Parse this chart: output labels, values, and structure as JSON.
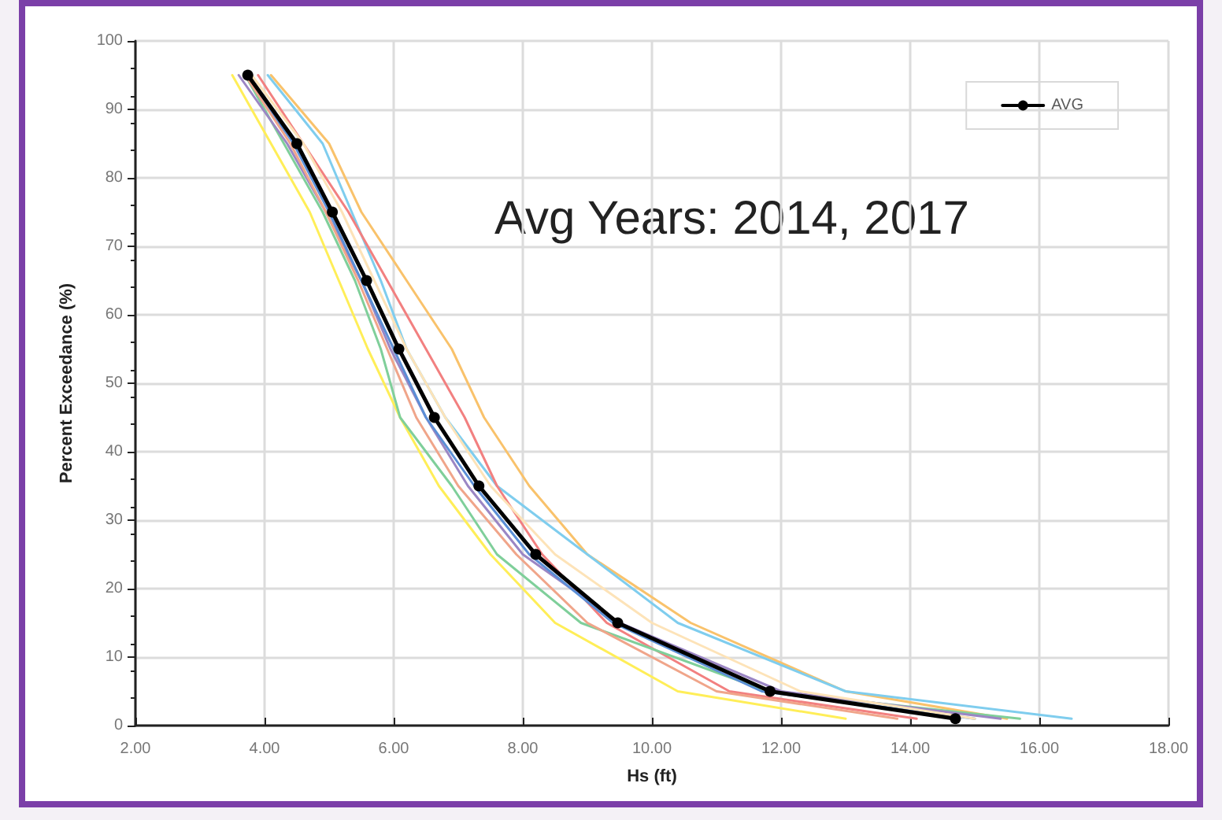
{
  "chart_data": {
    "type": "line",
    "xlabel": "Hs (ft)",
    "ylabel": "Percent Exceedance (%)",
    "annotations": [
      "Avg Years: 2014, 2017"
    ],
    "xlim": [
      2,
      18
    ],
    "xticks": [
      {
        "value": 2,
        "label": "2.00"
      },
      {
        "value": 4,
        "label": "4.00"
      },
      {
        "value": 6,
        "label": "6.00"
      },
      {
        "value": 8,
        "label": "8.00"
      },
      {
        "value": 10,
        "label": "10.00"
      },
      {
        "value": 12,
        "label": "12.00"
      },
      {
        "value": 14,
        "label": "14.00"
      },
      {
        "value": 16,
        "label": "16.00"
      },
      {
        "value": 18,
        "label": "18.00"
      }
    ],
    "ylim": [
      0,
      100
    ],
    "yticks": [
      0,
      10,
      20,
      30,
      40,
      50,
      60,
      70,
      80,
      90,
      100
    ],
    "grid": true,
    "legend": "top right",
    "marker": "none",
    "series": [
      {
        "color": "#ffee58",
        "x": [
          3.5,
          4.1,
          4.7,
          5.15,
          5.6,
          6.1,
          6.7,
          7.5,
          8.5,
          10.4,
          13.0
        ],
        "values": [
          95,
          85,
          75,
          65,
          55,
          45,
          35,
          25,
          15,
          5,
          1
        ]
      },
      {
        "color": "#f9c26b",
        "x": [
          4.1,
          5.0,
          5.5,
          6.2,
          6.9,
          7.4,
          8.1,
          9.0,
          10.6,
          13.0,
          15.5
        ],
        "values": [
          95,
          85,
          75,
          65,
          55,
          45,
          35,
          25,
          15,
          5,
          1
        ]
      },
      {
        "color": "#7fcdee",
        "x": [
          4.05,
          4.9,
          5.35,
          5.8,
          6.2,
          6.8,
          7.6,
          9.0,
          10.4,
          13.0,
          16.5
        ],
        "values": [
          95,
          85,
          75,
          65,
          55,
          45,
          35,
          25,
          15,
          5,
          1
        ]
      },
      {
        "color": "#f28080",
        "x": [
          3.9,
          4.6,
          5.3,
          5.9,
          6.5,
          7.1,
          7.6,
          8.3,
          9.3,
          11.2,
          14.1
        ],
        "values": [
          95,
          85,
          75,
          65,
          55,
          45,
          35,
          25,
          15,
          5,
          1
        ]
      },
      {
        "color": "#7fcf9a",
        "x": [
          3.7,
          4.3,
          4.9,
          5.4,
          5.8,
          6.1,
          6.9,
          7.6,
          8.9,
          11.8,
          15.7
        ],
        "values": [
          95,
          85,
          75,
          65,
          55,
          45,
          35,
          25,
          15,
          5,
          1
        ]
      },
      {
        "color": "#9b86c4",
        "x": [
          3.6,
          4.35,
          4.95,
          5.5,
          5.95,
          6.5,
          7.15,
          8.0,
          9.5,
          12.0,
          15.4
        ],
        "values": [
          95,
          85,
          75,
          65,
          55,
          45,
          35,
          25,
          15,
          5,
          1
        ]
      },
      {
        "color": "#5b8fd6",
        "x": [
          3.7,
          4.45,
          5.0,
          5.5,
          6.0,
          6.5,
          7.25,
          8.1,
          9.4,
          11.7,
          15.0
        ],
        "values": [
          95,
          85,
          75,
          65,
          55,
          45,
          35,
          25,
          15,
          5,
          1
        ]
      },
      {
        "color": "#f0a58a",
        "x": [
          3.7,
          4.4,
          4.95,
          5.45,
          5.9,
          6.35,
          7.0,
          7.9,
          9.0,
          11.0,
          13.8
        ],
        "values": [
          95,
          85,
          75,
          65,
          55,
          45,
          35,
          25,
          15,
          5,
          1
        ]
      },
      {
        "color": "#fde3b8",
        "x": [
          3.8,
          4.6,
          5.2,
          5.7,
          6.2,
          6.8,
          7.5,
          8.5,
          10.0,
          12.3,
          15.0
        ],
        "values": [
          95,
          85,
          75,
          65,
          55,
          45,
          35,
          25,
          15,
          5,
          1
        ]
      },
      {
        "name": "AVG",
        "color": "#000000",
        "marker": "circle",
        "x": [
          3.74,
          4.5,
          5.05,
          5.58,
          6.08,
          6.63,
          7.32,
          8.2,
          9.47,
          11.83,
          14.7
        ],
        "values": [
          95,
          85,
          75,
          65,
          55,
          45,
          35,
          25,
          15,
          5,
          1
        ]
      }
    ]
  }
}
